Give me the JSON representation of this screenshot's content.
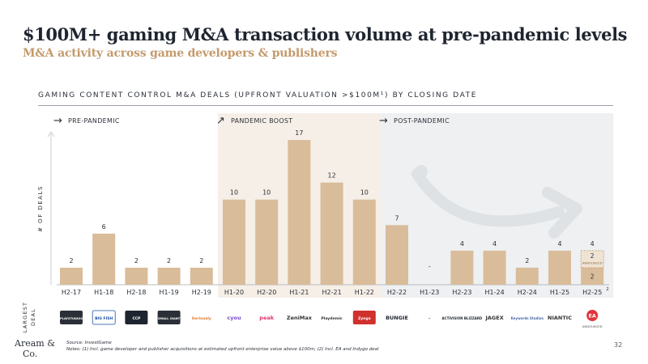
{
  "header": {
    "title": "$100M+ gaming M&A transaction volume at pre-pandemic levels",
    "subtitle": "M&A activity across game developers & publishers"
  },
  "section": {
    "title": "GAMING CONTENT CONTROL M&A DEALS (UPFRONT VALUATION >$100M¹) BY CLOSING DATE"
  },
  "colors": {
    "bar": "#d9bc9a",
    "band_pandemic": "#f6efe7",
    "band_post": "#eef0f2",
    "accent": "#c49a6c",
    "text": "#2a2f38"
  },
  "chart_data": {
    "type": "bar",
    "title": "GAMING CONTENT CONTROL M&A DEALS (UPFRONT VALUATION >$100M¹) BY CLOSING DATE",
    "xlabel": "",
    "ylabel": "# OF DEALS",
    "ylim": [
      0,
      19
    ],
    "grid": false,
    "categories": [
      "H2-17",
      "H1-18",
      "H2-18",
      "H1-19",
      "H2-19",
      "H1-20",
      "H2-20",
      "H1-21",
      "H2-21",
      "H1-22",
      "H2-22",
      "H1-23",
      "H2-23",
      "H1-24",
      "H2-24",
      "H1-25",
      "H2-25"
    ],
    "values": [
      2,
      6,
      2,
      2,
      2,
      10,
      10,
      17,
      12,
      10,
      7,
      0,
      4,
      4,
      2,
      4,
      4
    ],
    "value_labels": [
      "2",
      "6",
      "2",
      "2",
      "2",
      "10",
      "10",
      "17",
      "12",
      "10",
      "7",
      "-",
      "4",
      "4",
      "2",
      "4",
      "4"
    ],
    "category_superscripts": {
      "H2-25": "2"
    },
    "stacked_note": {
      "category": "H2-25",
      "completed": 2,
      "announced": 2,
      "completed_label": "2",
      "announced_label": "2",
      "announced_text": "ANNOUNCED"
    },
    "periods": [
      {
        "label": "PRE-PANDEMIC",
        "arrow": "→",
        "from": "H2-17",
        "to": "H2-19"
      },
      {
        "label": "PANDEMIC BOOST",
        "arrow": "↗",
        "from": "H1-20",
        "to": "H1-22"
      },
      {
        "label": "POST-PANDEMIC",
        "arrow": "→",
        "from": "H2-22",
        "to": "H2-25"
      }
    ],
    "largest_deal_label": "LARGEST DEAL",
    "largest_deals": [
      {
        "category": "H2-17",
        "name": "PLAYSTUDIOS"
      },
      {
        "category": "H1-18",
        "name": "BIG FISH"
      },
      {
        "category": "H2-18",
        "name": "CCP"
      },
      {
        "category": "H1-19",
        "name": "SMALL GIANT"
      },
      {
        "category": "H2-19",
        "name": "Seriously"
      },
      {
        "category": "H1-20",
        "name": "cyou"
      },
      {
        "category": "H2-20",
        "name": "peak"
      },
      {
        "category": "H1-21",
        "name": "ZeniMax"
      },
      {
        "category": "H2-21",
        "name": "Playdemic"
      },
      {
        "category": "H1-22",
        "name": "Zynga"
      },
      {
        "category": "H2-22",
        "name": "BUNGIE"
      },
      {
        "category": "H1-23",
        "name": "-"
      },
      {
        "category": "H2-23",
        "name": "ACTIVISION BLIZZARD"
      },
      {
        "category": "H1-24",
        "name": "JAGEX"
      },
      {
        "category": "H2-24",
        "name": "Keywords Studios"
      },
      {
        "category": "H1-25",
        "name": "NIANTIC"
      },
      {
        "category": "H2-25",
        "name": "EA"
      }
    ],
    "largest_deal_note": {
      "category": "H2-25",
      "text": "ANNOUNCED"
    }
  },
  "footer": {
    "logo_line1": "Aream &",
    "logo_line2": "Co.",
    "source": "Source: InvestGame",
    "notes": "Notes: (1) Incl. game developer and publisher acquisitions at estimated upfront enterprise value above $100m; (2) Incl. EA and Indygo deal",
    "page": "32"
  }
}
